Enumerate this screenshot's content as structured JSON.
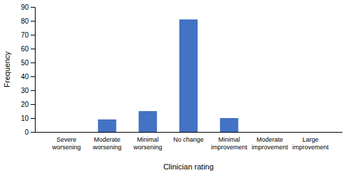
{
  "chart_data": {
    "type": "bar",
    "categories": [
      "Severe\nworsening",
      "Moderate\nworsening",
      "Minimal\nworsening",
      "No change",
      "Minimal\nimprovement",
      "Moderate\nimprovement",
      "Large\nimprovement"
    ],
    "values": [
      0,
      9,
      15,
      81,
      10,
      0,
      0
    ],
    "color": "#4472C4",
    "xlabel": "Clinician rating",
    "ylabel": "Frequency",
    "ylim": [
      0,
      90
    ],
    "yticks": [
      0,
      10,
      20,
      30,
      40,
      50,
      60,
      70,
      80,
      90
    ],
    "grid": false
  }
}
